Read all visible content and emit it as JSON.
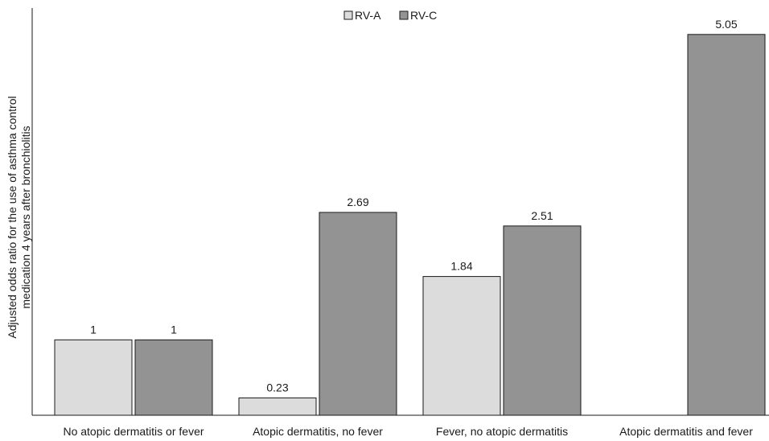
{
  "chart_data": {
    "type": "bar",
    "title": "",
    "xlabel": "",
    "ylabel_lines": [
      "Adjusted odds ratio for the use of asthma control",
      "medication 4 years after bronchiolitis"
    ],
    "categories": [
      "No atopic dermatitis or fever",
      "Atopic dermatitis, no fever",
      "Fever, no atopic dermatitis",
      "Atopic dermatitis and fever"
    ],
    "series": [
      {
        "name": "RV-A",
        "color": "#dcdcdc",
        "values": [
          1,
          0.23,
          1.84,
          null
        ],
        "labels": [
          "1",
          "0.23",
          "1.84",
          ""
        ]
      },
      {
        "name": "RV-C",
        "color": "#939393",
        "values": [
          1,
          2.69,
          2.51,
          5.05
        ],
        "labels": [
          "1",
          "2.69",
          "2.51",
          "5.05"
        ]
      }
    ],
    "ylim": [
      0,
      5.4
    ],
    "grid": false,
    "legend_position": "top-center",
    "edge_color": "#1a1a1a"
  }
}
